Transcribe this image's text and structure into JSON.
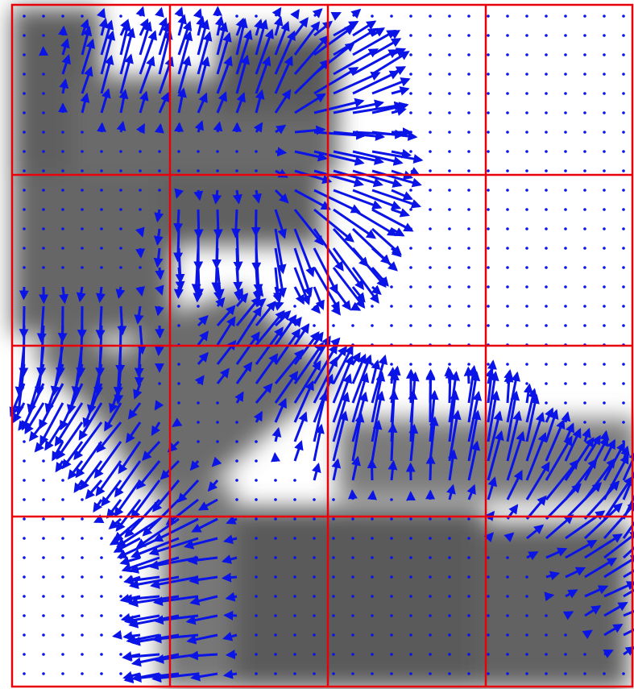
{
  "figure": {
    "kind": "gradient vector field over blurred grayscale image",
    "grid": {
      "rows": 4,
      "cols": 4,
      "line_color": "#e8000b"
    },
    "arrow_color": "#0a14e6",
    "dot_color": "#0a14e6",
    "background_color": "#ffffff",
    "shape_color": "#5a5a5a"
  }
}
